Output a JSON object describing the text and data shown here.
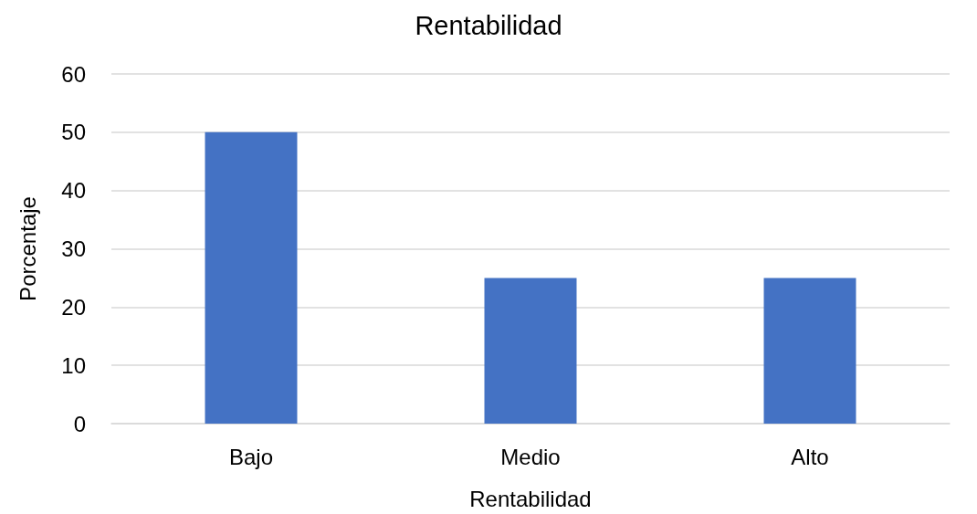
{
  "chart_data": {
    "type": "bar",
    "title": "Rentabilidad",
    "xlabel": "Rentabilidad",
    "ylabel": "Porcentaje",
    "categories": [
      "Bajo",
      "Medio",
      "Alto"
    ],
    "values": [
      50,
      25,
      25
    ],
    "color": "#4472c4",
    "ylim": [
      0,
      60
    ],
    "yticks": [
      0,
      10,
      20,
      30,
      40,
      50,
      60
    ],
    "grid": "y"
  }
}
